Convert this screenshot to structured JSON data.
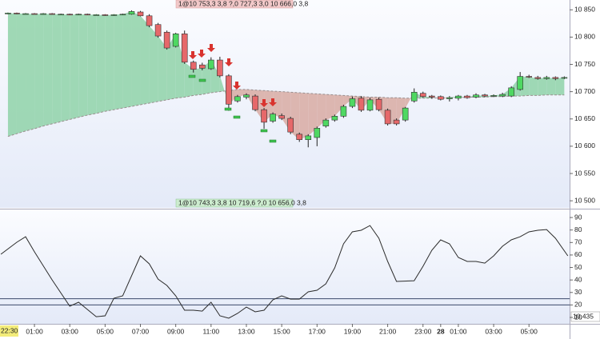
{
  "chart_data": [
    {
      "type": "candlestick",
      "annotations": [
        "1@10 753,3 3,8 ?,0 727,3 3,0 10 666,0 3,8",
        "1@10 743,3 3,8 10 719,6 ?,0 10 656,0 3,8"
      ],
      "x": [
        -0.5,
        0,
        0.5,
        1,
        1.5,
        2,
        2.5,
        3,
        3.5,
        4,
        4.5,
        5,
        5.5,
        6,
        6.5,
        7,
        7.5,
        8,
        8.5,
        9,
        9.5,
        10,
        10.5,
        11,
        11.5,
        12,
        12.5,
        13,
        13.5,
        14,
        14.5,
        15,
        15.5,
        16,
        16.5,
        17,
        17.5,
        18,
        18.5,
        19,
        19.5,
        20,
        20.5,
        21,
        21.5,
        22,
        22.5,
        23,
        23.5,
        24,
        24.5,
        25,
        25.5,
        26,
        26.5,
        27,
        27.5,
        28,
        28.5,
        29,
        29.5,
        30,
        30.5,
        31
      ],
      "open": [
        10843,
        10844,
        10843,
        10843,
        10842,
        10843,
        10842,
        10842,
        10841,
        10842,
        10841,
        10841,
        10840,
        10841,
        10842,
        10846,
        10839,
        10823,
        10809,
        10783,
        10806,
        10754,
        10749,
        10742,
        10758,
        10729,
        10683,
        10690,
        10692,
        10667,
        10646,
        10656,
        10651,
        10622,
        10612,
        10616,
        10637,
        10648,
        10655,
        10673,
        10688,
        10666,
        10686,
        10666,
        10648,
        10648,
        10683,
        10697,
        10692,
        10691,
        10687,
        10688,
        10692,
        10690,
        10694,
        10692,
        10692,
        10692,
        10704,
        10728,
        10726,
        10724,
        10726,
        10725
      ],
      "high": [
        10845,
        10845,
        10844,
        10844,
        10844,
        10844,
        10843,
        10843,
        10843,
        10843,
        10842,
        10842,
        10842,
        10843,
        10849,
        10848,
        10842,
        10826,
        10812,
        10808,
        10812,
        10757,
        10753,
        10763,
        10764,
        10732,
        10694,
        10697,
        10695,
        10670,
        10662,
        10660,
        10654,
        10625,
        10622,
        10636,
        10651,
        10658,
        10676,
        10691,
        10692,
        10689,
        10689,
        10669,
        10651,
        10672,
        10706,
        10700,
        10694,
        10693,
        10692,
        10694,
        10694,
        10697,
        10696,
        10695,
        10698,
        10710,
        10736,
        10731,
        10729,
        10729,
        10728,
        10728
      ],
      "low": [
        10842,
        10842,
        10842,
        10842,
        10841,
        10841,
        10841,
        10840,
        10840,
        10840,
        10840,
        10839,
        10839,
        10840,
        10841,
        10838,
        10818,
        10799,
        10777,
        10781,
        10751,
        10735,
        10739,
        10740,
        10726,
        10665,
        10680,
        10686,
        10664,
        10632,
        10643,
        10648,
        10622,
        10608,
        10598,
        10600,
        10634,
        10645,
        10652,
        10670,
        10663,
        10664,
        10664,
        10638,
        10638,
        10645,
        10680,
        10689,
        10687,
        10684,
        10682,
        10684,
        10687,
        10688,
        10690,
        10690,
        10690,
        10690,
        10702,
        10725,
        10722,
        10722,
        10721,
        10723
      ],
      "close": [
        10844,
        10843,
        10843,
        10842,
        10843,
        10842,
        10842,
        10841,
        10842,
        10841,
        10841,
        10840,
        10841,
        10842,
        10847,
        10839,
        10821,
        10802,
        10780,
        10806,
        10754,
        10741,
        10743,
        10758,
        10729,
        10677,
        10691,
        10694,
        10667,
        10644,
        10659,
        10651,
        10626,
        10612,
        10619,
        10633,
        10648,
        10655,
        10673,
        10687,
        10666,
        10685,
        10667,
        10641,
        10641,
        10670,
        10699,
        10691,
        10690,
        10686,
        10689,
        10692,
        10689,
        10694,
        10692,
        10693,
        10695,
        10707,
        10728,
        10727,
        10724,
        10726,
        10724,
        10726
      ],
      "up_color": "#4fd862",
      "down_color": "#e6686a",
      "moving_average": {
        "color": "#9a8f8f",
        "values": [
          10618,
          10623,
          10628,
          10632,
          10637,
          10641,
          10645,
          10649,
          10653,
          10657,
          10660,
          10664,
          10667,
          10670,
          10673,
          10676,
          10679,
          10682,
          10685,
          10688,
          10690,
          10693,
          10695,
          10698,
          10700,
          10702,
          10704,
          10704,
          10703,
          10702,
          10701,
          10700,
          10699,
          10698,
          10697,
          10696,
          10695,
          10694,
          10693,
          10692,
          10691,
          10690,
          10690,
          10689,
          10689,
          10688,
          10688,
          10688,
          10688,
          10689,
          10689,
          10689,
          10690,
          10690,
          10690,
          10691,
          10691,
          10692,
          10692,
          10693,
          10693,
          10694,
          10694,
          10694
        ]
      },
      "fill_colors": {
        "above": "#8fd2a8",
        "below": "#d8aaa2"
      },
      "xlim": [
        -0.95,
        31.3
      ],
      "ylim": [
        10487,
        10868
      ],
      "yticks": [
        {
          "value": 10500,
          "label": "10 500"
        },
        {
          "value": 10550,
          "label": "10 550"
        },
        {
          "value": 10600,
          "label": "10 600"
        },
        {
          "value": 10650,
          "label": "10 650"
        },
        {
          "value": 10700,
          "label": "10 700"
        },
        {
          "value": 10750,
          "label": "10 750"
        },
        {
          "value": 10800,
          "label": "10 800"
        },
        {
          "value": 10850,
          "label": "10 850"
        }
      ]
    },
    {
      "type": "line",
      "x": [
        -0.9,
        0,
        0.5,
        1,
        2,
        3,
        3.5,
        4.5,
        5,
        5.5,
        6,
        7,
        7.5,
        8,
        8.5,
        9,
        9.5,
        10,
        10.5,
        11,
        11.5,
        12,
        12.5,
        13,
        13.5,
        14,
        14.5,
        15,
        15.5,
        16,
        16.5,
        17,
        17.5,
        18,
        18.5,
        19,
        19.5,
        20,
        20.5,
        21,
        21.5,
        22.5,
        23,
        23.5,
        24,
        24.5,
        25,
        25.5,
        26,
        26.5,
        27,
        27.5,
        28,
        28.5,
        29,
        29.5,
        30,
        30.5,
        31.2
      ],
      "series": [
        {
          "color": "#2b2b2b",
          "values": [
            60.6,
            70.2,
            74.6,
            62.5,
            40.1,
            19,
            22.2,
            10.6,
            11.3,
            25.4,
            27.3,
            59.3,
            52.9,
            40.7,
            35.6,
            27.3,
            15.8,
            15.8,
            15.1,
            22.2,
            11.3,
            9.4,
            13.2,
            18.3,
            14.5,
            15.8,
            24.1,
            27.3,
            24.7,
            24.7,
            30.5,
            31.8,
            36.9,
            49.7,
            68.9,
            78.5,
            79.8,
            83.6,
            73.4,
            54.8,
            38.8,
            39.4,
            51,
            63.8,
            72.1,
            68.9,
            58,
            54.8,
            54.8,
            53.5,
            59.3,
            67,
            72.1,
            74.6,
            78.5,
            79.8,
            80.4,
            73.4,
            59.3
          ]
        }
      ],
      "levels": [
        20,
        25
      ],
      "level_color": "#3b4a6b",
      "xlim": [
        -0.95,
        31.3
      ],
      "ylim": [
        4.9,
        95.8
      ],
      "yticks": [
        10,
        20,
        30,
        40,
        50,
        60,
        70,
        80,
        90
      ],
      "xticks": [
        {
          "value": 1,
          "label": "01:00"
        },
        {
          "value": 3,
          "label": "03:00"
        },
        {
          "value": 5,
          "label": "05:00"
        },
        {
          "value": 7,
          "label": "07:00"
        },
        {
          "value": 9,
          "label": "09:00"
        },
        {
          "value": 11,
          "label": "11:00"
        },
        {
          "value": 13,
          "label": "13:00"
        },
        {
          "value": 15,
          "label": "15:00"
        },
        {
          "value": 17,
          "label": "17:00"
        },
        {
          "value": 19,
          "label": "19:00"
        },
        {
          "value": 21,
          "label": "21:00"
        },
        {
          "value": 23,
          "label": "23:00"
        },
        {
          "value": 24,
          "label": "28"
        },
        {
          "value": 25,
          "label": "01:00"
        },
        {
          "value": 27,
          "label": "03:00"
        },
        {
          "value": 29,
          "label": "05:00"
        }
      ],
      "annotations": [
        "22:30",
        "10,435"
      ]
    }
  ]
}
